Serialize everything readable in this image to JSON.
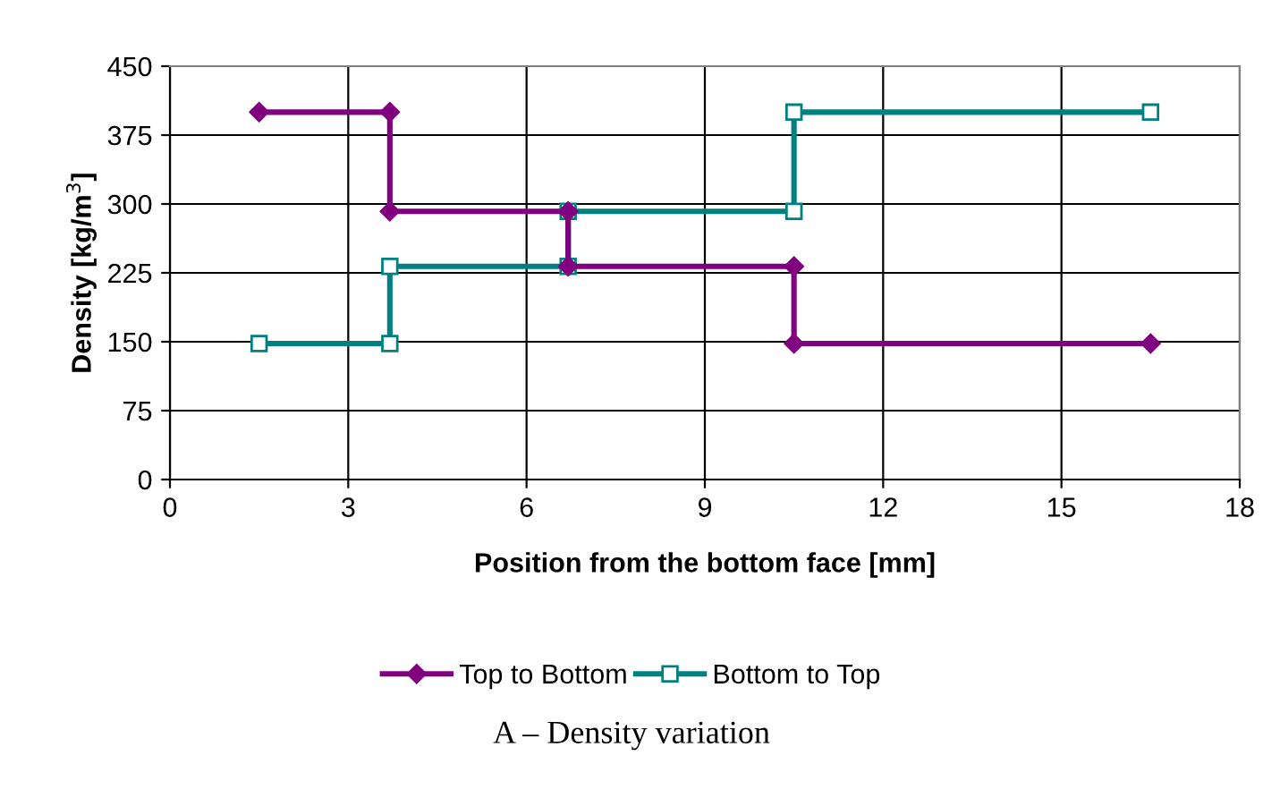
{
  "chart_data": {
    "type": "line",
    "xlabel": "Position from the bottom face [mm]",
    "ylabel": "Density [kg/m$^{3}$]",
    "annotations": [
      "A – Density variation"
    ],
    "series": [
      {
        "name": "Top to Bottom",
        "color": "#800080",
        "marker": "diamond",
        "x": [
          1.5,
          3.7,
          3.7,
          6.7,
          6.7,
          10.5,
          10.5,
          16.5
        ],
        "values": [
          400,
          400,
          292,
          292,
          232,
          232,
          148,
          148
        ]
      },
      {
        "name": "Bottom to Top",
        "color": "#008080",
        "marker": "square",
        "x": [
          1.5,
          3.7,
          3.7,
          6.7,
          6.7,
          10.5,
          10.5,
          16.5
        ],
        "values": [
          148,
          148,
          232,
          232,
          292,
          292,
          400,
          400
        ]
      }
    ],
    "xlim": [
      0,
      18
    ],
    "xticks": [
      0,
      3,
      6,
      9,
      12,
      15,
      18
    ],
    "ylim": [
      0,
      450
    ],
    "yticks": [
      0,
      75,
      150,
      225,
      300,
      375,
      450
    ],
    "grid": true,
    "legend": "bottom",
    "line_style": "solid"
  }
}
